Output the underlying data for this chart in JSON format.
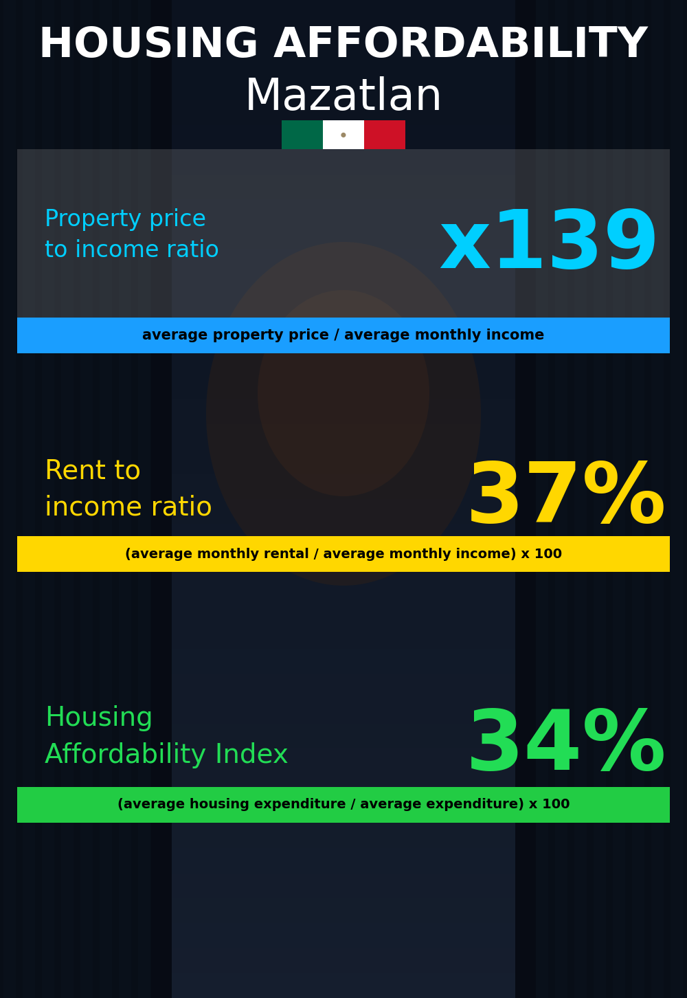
{
  "title_line1": "HOUSING AFFORDABILITY",
  "title_line2": "Mazatlan",
  "bg_color": "#0d1117",
  "section1_label": "Property price\nto income ratio",
  "section1_value": "x139",
  "section1_label_color": "#00cfff",
  "section1_value_color": "#00cfff",
  "section1_banner_text": "average property price / average monthly income",
  "section1_banner_bg": "#1a9eff",
  "section1_banner_text_color": "#000000",
  "section2_label": "Rent to\nincome ratio",
  "section2_value": "37%",
  "section2_label_color": "#FFD700",
  "section2_value_color": "#FFD700",
  "section2_banner_text": "(average monthly rental / average monthly income) x 100",
  "section2_banner_bg": "#FFD700",
  "section2_banner_text_color": "#000000",
  "section3_label": "Housing\nAffordability Index",
  "section3_value": "34%",
  "section3_label_color": "#22dd55",
  "section3_value_color": "#22dd55",
  "section3_banner_text": "(average housing expenditure / average expenditure) x 100",
  "section3_banner_bg": "#22cc44",
  "section3_banner_text_color": "#000000",
  "title_color": "#ffffff",
  "subtitle_color": "#ffffff",
  "flag_green": "#006847",
  "flag_white": "#ffffff",
  "flag_red": "#ce1126"
}
